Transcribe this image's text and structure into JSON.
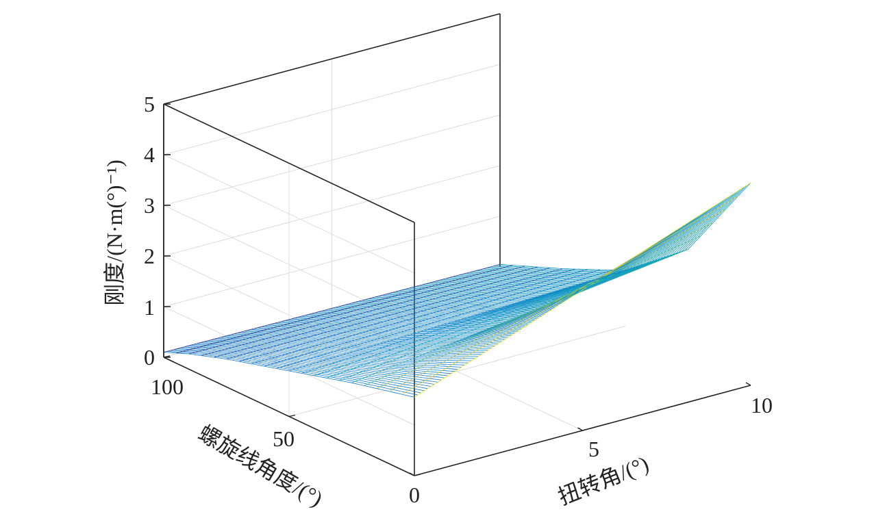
{
  "chart_data": {
    "type": "surface",
    "title": "",
    "xlabel": "扭转角/(°)",
    "ylabel": "螺旋线角度/(°)",
    "zlabel": "刚度/(N·m(°)⁻¹)",
    "xlim": [
      0,
      10
    ],
    "ylim": [
      0,
      100
    ],
    "zlim": [
      0,
      5
    ],
    "x_ticks": [
      "0",
      "5",
      "10"
    ],
    "y_ticks": [
      "50",
      "100"
    ],
    "z_ticks": [
      "0",
      "1",
      "2",
      "3",
      "4",
      "5"
    ],
    "grid": true,
    "colormap": "parula",
    "surface_samples": {
      "description_axes": "stiffness z at (helix angle y, twist angle x)",
      "y_values": [
        0,
        25,
        50,
        75,
        90,
        100
      ],
      "z_at_twist_0": [
        1.55,
        1.25,
        0.9,
        0.55,
        0.3,
        0.1
      ],
      "z_at_twist_10": [
        4.0,
        2.1,
        1.1,
        0.55,
        0.25,
        0.05
      ]
    }
  }
}
